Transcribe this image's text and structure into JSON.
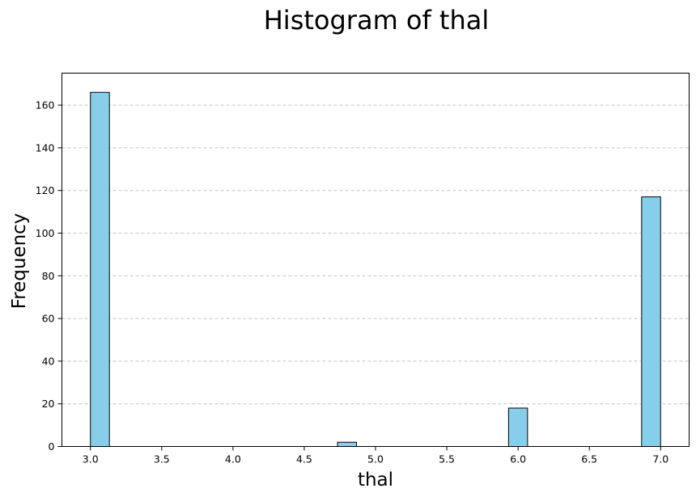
{
  "chart_data": {
    "type": "bar",
    "title": "Histogram of thal",
    "xlabel": "thal",
    "ylabel": "Frequency",
    "bins": {
      "start": 3.0,
      "end": 7.0,
      "count": 30
    },
    "bars": [
      {
        "x_start": 3.0,
        "x_end": 3.1333,
        "value": 166
      },
      {
        "x_start": 4.7333,
        "x_end": 4.8667,
        "value": 2
      },
      {
        "x_start": 5.9333,
        "x_end": 6.0667,
        "value": 18
      },
      {
        "x_start": 6.8667,
        "x_end": 7.0,
        "value": 117
      }
    ],
    "xlim": [
      2.8,
      7.2
    ],
    "ylim": [
      0,
      175
    ],
    "xticks": [
      3.0,
      3.5,
      4.0,
      4.5,
      5.0,
      5.5,
      6.0,
      6.5,
      7.0
    ],
    "xtick_labels": [
      "3.0",
      "3.5",
      "4.0",
      "4.5",
      "5.0",
      "5.5",
      "6.0",
      "6.5",
      "7.0"
    ],
    "yticks": [
      0,
      20,
      40,
      60,
      80,
      100,
      120,
      140,
      160
    ],
    "ytick_labels": [
      "0",
      "20",
      "40",
      "60",
      "80",
      "100",
      "120",
      "140",
      "160"
    ],
    "grid": "y-axis dashed",
    "bar_color": "#87ceeb",
    "edge_color": "#000000"
  }
}
